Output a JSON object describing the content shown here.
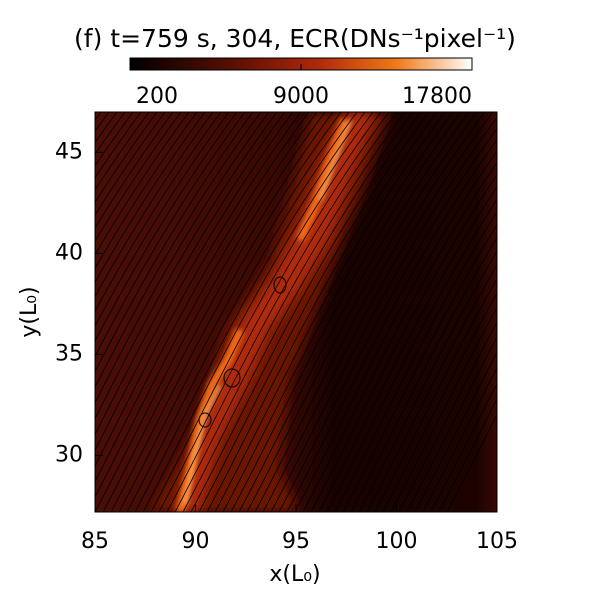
{
  "chart_data": {
    "type": "heatmap",
    "title": "(f) t=759 s, 304, ECR(DNs⁻¹pixel⁻¹)",
    "x_label": "x(L₀)",
    "y_label": "y(L₀)",
    "xlim": [
      85,
      105
    ],
    "xticks": [
      85,
      90,
      95,
      100,
      105
    ],
    "ylim": [
      27.2,
      47
    ],
    "yticks": [
      30,
      35,
      40,
      45
    ],
    "colorbar": {
      "lim": [
        200,
        17800
      ],
      "ticks": [
        200,
        9000,
        17800
      ]
    }
  }
}
